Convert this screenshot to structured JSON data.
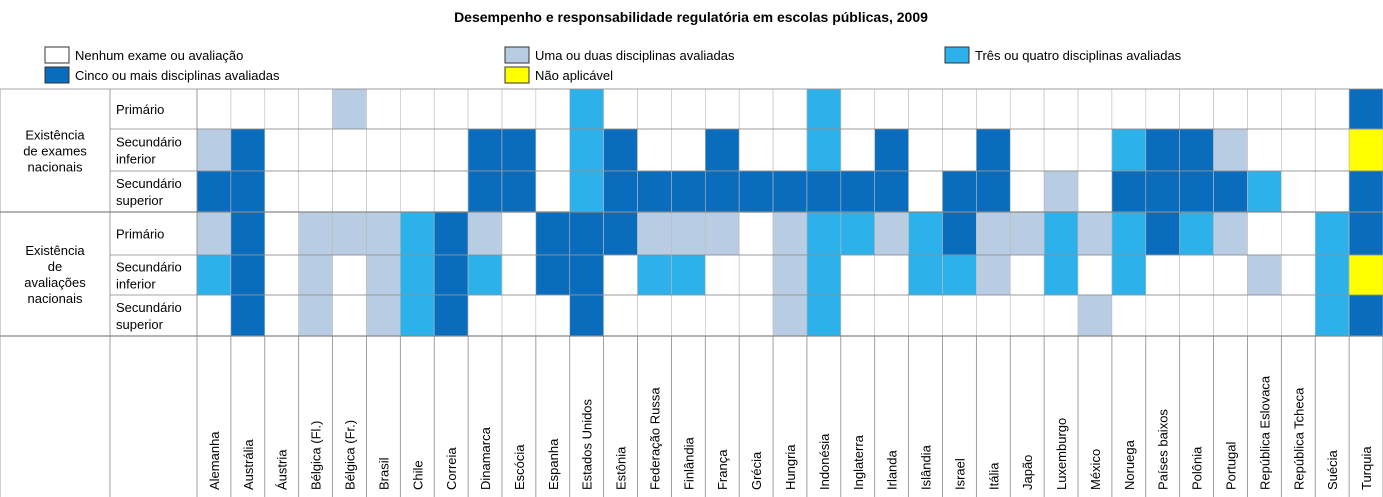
{
  "title": "Desempenho e responsabilidade regulatória em escolas públicas, 2009",
  "legend": [
    {
      "label": "Nenhum exame ou avaliação",
      "color": "#ffffff"
    },
    {
      "label": "Uma ou duas disciplinas avaliadas",
      "color": "#b8cce4"
    },
    {
      "label": "Três ou quatro disciplinas avaliadas",
      "color": "#2cb1ea"
    },
    {
      "label": "Cinco ou mais disciplinas avaliadas",
      "color": "#0a6cbd"
    },
    {
      "label": "Não aplicável",
      "color": "#ffff00"
    }
  ],
  "groups": [
    {
      "label": [
        "Existência",
        "de exames",
        "nacionais"
      ],
      "rows": [
        [
          "Primário"
        ],
        [
          "Secundário",
          "inferior"
        ],
        [
          "Secundário",
          "superior"
        ]
      ]
    },
    {
      "label": [
        "Existência",
        "de",
        "avaliações",
        "nacionais"
      ],
      "rows": [
        [
          "Primário"
        ],
        [
          "Secundário",
          "inferior"
        ],
        [
          "Secundário",
          "superior"
        ]
      ]
    }
  ],
  "columns": [
    "Alemanha",
    "Austrália",
    "Áustria",
    "Bélgica (Fl.)",
    "Bélgica (Fr.)",
    "Brasil",
    "Chile",
    "Correia",
    "Dinamarca",
    "Escócia",
    "Espanha",
    "Estados Unidos",
    "Estônia",
    "Federação Russa",
    "Finlândia",
    "França",
    "Grécia",
    "Hungria",
    "Indonésia",
    "Inglaterra",
    "Irlanda",
    "Islândia",
    "Israel",
    "Itália",
    "Japão",
    "Luxemburgo",
    "México",
    "Noruega",
    "Países baixos",
    "Polônia",
    "Portugal",
    "República  Eslovaca",
    "República Tcheca",
    "Suécia",
    "Turquia"
  ],
  "cells": [
    [
      0,
      1,
      3,
      1,
      2,
      0
    ],
    [
      0,
      3,
      3,
      3,
      3,
      3
    ],
    [
      0,
      0,
      0,
      0,
      0,
      0
    ],
    [
      0,
      0,
      0,
      1,
      1,
      1
    ],
    [
      1,
      0,
      0,
      1,
      0,
      0
    ],
    [
      0,
      0,
      0,
      1,
      1,
      1
    ],
    [
      0,
      0,
      0,
      2,
      2,
      2
    ],
    [
      0,
      0,
      0,
      3,
      3,
      3
    ],
    [
      0,
      3,
      3,
      1,
      2,
      0
    ],
    [
      0,
      3,
      3,
      0,
      0,
      0
    ],
    [
      0,
      0,
      0,
      3,
      3,
      0
    ],
    [
      2,
      2,
      2,
      3,
      3,
      3
    ],
    [
      0,
      3,
      3,
      3,
      0,
      0
    ],
    [
      0,
      0,
      3,
      1,
      2,
      0
    ],
    [
      0,
      0,
      3,
      1,
      2,
      0
    ],
    [
      0,
      3,
      3,
      1,
      0,
      0
    ],
    [
      0,
      0,
      3,
      0,
      0,
      0
    ],
    [
      0,
      0,
      3,
      1,
      1,
      1
    ],
    [
      2,
      2,
      3,
      2,
      2,
      2
    ],
    [
      0,
      0,
      3,
      2,
      0,
      0
    ],
    [
      0,
      3,
      3,
      1,
      0,
      0
    ],
    [
      0,
      0,
      0,
      2,
      2,
      0
    ],
    [
      0,
      0,
      3,
      3,
      2,
      0
    ],
    [
      0,
      3,
      3,
      1,
      1,
      0
    ],
    [
      0,
      0,
      0,
      1,
      0,
      0
    ],
    [
      0,
      0,
      1,
      2,
      2,
      0
    ],
    [
      0,
      0,
      0,
      1,
      0,
      1
    ],
    [
      0,
      2,
      3,
      2,
      2,
      0
    ],
    [
      0,
      3,
      3,
      3,
      0,
      0
    ],
    [
      0,
      3,
      3,
      2,
      0,
      0
    ],
    [
      0,
      1,
      3,
      1,
      0,
      0
    ],
    [
      0,
      0,
      2,
      0,
      1,
      0
    ],
    [
      0,
      0,
      0,
      0,
      0,
      0
    ],
    [
      0,
      0,
      0,
      2,
      2,
      2
    ],
    [
      3,
      4,
      3,
      3,
      4,
      3
    ]
  ]
}
